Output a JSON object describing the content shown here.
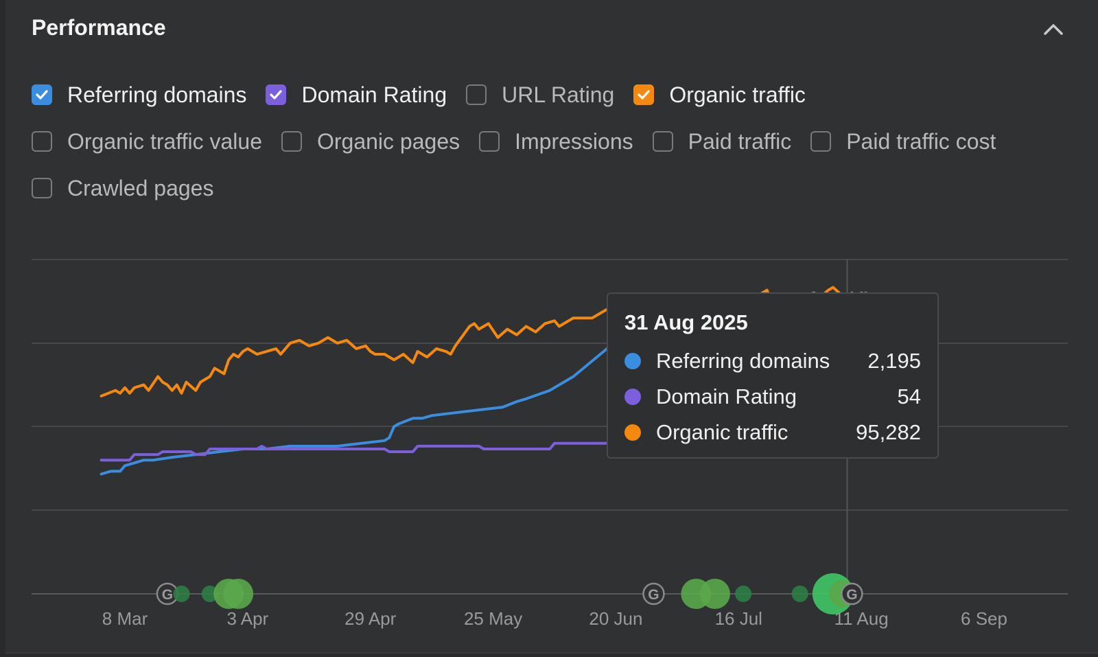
{
  "panel": {
    "title": "Performance"
  },
  "metrics": [
    [
      {
        "label": "Referring domains",
        "checked": true,
        "color": "#3b8de0"
      },
      {
        "label": "Domain Rating",
        "checked": true,
        "color": "#7b5fdc"
      },
      {
        "label": "URL Rating",
        "checked": false,
        "color": ""
      },
      {
        "label": "Organic traffic",
        "checked": true,
        "color": "#f5890f"
      }
    ],
    [
      {
        "label": "Organic traffic value",
        "checked": false,
        "color": ""
      },
      {
        "label": "Organic pages",
        "checked": false,
        "color": ""
      },
      {
        "label": "Impressions",
        "checked": false,
        "color": ""
      },
      {
        "label": "Paid traffic",
        "checked": false,
        "color": ""
      },
      {
        "label": "Paid traffic cost",
        "checked": false,
        "color": ""
      }
    ],
    [
      {
        "label": "Crawled pages",
        "checked": false,
        "color": ""
      }
    ]
  ],
  "tooltip": {
    "date": "31 Aug 2025",
    "rows": [
      {
        "name": "Referring domains",
        "value": "2,195",
        "color": "#3b8de0"
      },
      {
        "name": "Domain Rating",
        "value": "54",
        "color": "#7b5fdc"
      },
      {
        "name": "Organic traffic",
        "value": "95,282",
        "color": "#f5890f"
      }
    ]
  },
  "chart_data": {
    "type": "line",
    "x_start": "2025-03-03",
    "x_end": "2025-09-03",
    "x_ticks": [
      {
        "label": "8 Mar",
        "date": "2025-03-08"
      },
      {
        "label": "3 Apr",
        "date": "2025-04-03"
      },
      {
        "label": "29 Apr",
        "date": "2025-04-29"
      },
      {
        "label": "25 May",
        "date": "2025-05-25"
      },
      {
        "label": "20 Jun",
        "date": "2025-06-20"
      },
      {
        "label": "16 Jul",
        "date": "2025-07-16"
      },
      {
        "label": "11 Aug",
        "date": "2025-08-11"
      },
      {
        "label": "6 Sep",
        "date": "2025-09-06"
      }
    ],
    "grid": true,
    "series": [
      {
        "name": "Organic traffic",
        "color": "#f5890f",
        "y": [
          [
            0,
            0.71
          ],
          [
            3,
            0.73
          ],
          [
            4,
            0.72
          ],
          [
            5,
            0.74
          ],
          [
            6,
            0.72
          ],
          [
            7,
            0.74
          ],
          [
            9,
            0.75
          ],
          [
            10,
            0.73
          ],
          [
            12,
            0.78
          ],
          [
            13,
            0.76
          ],
          [
            14,
            0.75
          ],
          [
            15,
            0.73
          ],
          [
            16,
            0.75
          ],
          [
            17,
            0.72
          ],
          [
            18,
            0.76
          ],
          [
            20,
            0.73
          ],
          [
            21,
            0.76
          ],
          [
            23,
            0.78
          ],
          [
            24,
            0.81
          ],
          [
            26,
            0.79
          ],
          [
            27,
            0.84
          ],
          [
            28,
            0.86
          ],
          [
            29,
            0.85
          ],
          [
            30,
            0.87
          ],
          [
            31,
            0.88
          ],
          [
            33,
            0.86
          ],
          [
            35,
            0.87
          ],
          [
            37,
            0.88
          ],
          [
            38,
            0.86
          ],
          [
            40,
            0.9
          ],
          [
            42,
            0.91
          ],
          [
            44,
            0.89
          ],
          [
            46,
            0.9
          ],
          [
            48,
            0.92
          ],
          [
            50,
            0.9
          ],
          [
            52,
            0.91
          ],
          [
            54,
            0.88
          ],
          [
            56,
            0.89
          ],
          [
            57,
            0.87
          ],
          [
            58,
            0.86
          ],
          [
            60,
            0.86
          ],
          [
            62,
            0.84
          ],
          [
            64,
            0.86
          ],
          [
            66,
            0.83
          ],
          [
            67,
            0.87
          ],
          [
            69,
            0.85
          ],
          [
            71,
            0.88
          ],
          [
            73,
            0.87
          ],
          [
            74,
            0.86
          ],
          [
            75,
            0.89
          ],
          [
            78,
            0.96
          ],
          [
            79,
            0.97
          ],
          [
            80,
            0.95
          ],
          [
            82,
            0.97
          ],
          [
            84,
            0.92
          ],
          [
            86,
            0.95
          ],
          [
            88,
            0.93
          ],
          [
            90,
            0.96
          ],
          [
            92,
            0.94
          ],
          [
            94,
            0.97
          ],
          [
            96,
            0.98
          ],
          [
            97,
            0.96
          ],
          [
            100,
            0.99
          ],
          [
            104,
            0.99
          ],
          [
            107,
            1.02
          ],
          [
            110,
            1.0
          ],
          [
            113,
            1.04
          ],
          [
            115,
            1.03
          ],
          [
            117,
            1.01
          ],
          [
            119,
            1.02
          ],
          [
            121,
            1.05
          ],
          [
            124,
            1.06
          ],
          [
            126,
            1.03
          ],
          [
            128,
            1.05
          ],
          [
            130,
            1.06
          ],
          [
            132,
            1.05
          ],
          [
            134,
            1.07
          ],
          [
            136,
            1.05
          ],
          [
            138,
            1.06
          ],
          [
            140,
            1.08
          ],
          [
            141,
            1.09
          ],
          [
            142,
            1.05
          ],
          [
            143,
            1.07
          ],
          [
            144,
            1.06
          ],
          [
            145,
            1.07
          ],
          [
            147,
            1.05
          ],
          [
            149,
            1.07
          ],
          [
            151,
            1.08
          ],
          [
            152,
            1.06
          ],
          [
            154,
            1.09
          ],
          [
            155,
            1.1
          ],
          [
            157,
            1.07
          ],
          [
            158,
            1.04
          ],
          [
            159,
            1.08
          ],
          [
            160,
            1.06
          ],
          [
            161,
            1.08
          ],
          [
            162,
            1.07
          ]
        ]
      },
      {
        "name": "Referring domains",
        "color": "#3b8de0",
        "y": [
          [
            0,
            0.43
          ],
          [
            2,
            0.44
          ],
          [
            4,
            0.44
          ],
          [
            5,
            0.46
          ],
          [
            7,
            0.47
          ],
          [
            9,
            0.48
          ],
          [
            11,
            0.48
          ],
          [
            15,
            0.49
          ],
          [
            20,
            0.5
          ],
          [
            25,
            0.51
          ],
          [
            30,
            0.52
          ],
          [
            35,
            0.52
          ],
          [
            40,
            0.53
          ],
          [
            45,
            0.53
          ],
          [
            50,
            0.53
          ],
          [
            55,
            0.54
          ],
          [
            60,
            0.55
          ],
          [
            61,
            0.56
          ],
          [
            62,
            0.6
          ],
          [
            63,
            0.61
          ],
          [
            66,
            0.63
          ],
          [
            68,
            0.63
          ],
          [
            70,
            0.64
          ],
          [
            75,
            0.65
          ],
          [
            80,
            0.66
          ],
          [
            85,
            0.67
          ],
          [
            88,
            0.69
          ],
          [
            90,
            0.7
          ],
          [
            95,
            0.73
          ],
          [
            100,
            0.78
          ],
          [
            105,
            0.85
          ],
          [
            110,
            0.92
          ],
          [
            115,
            1.0
          ],
          [
            120,
            1.02
          ],
          [
            125,
            1.03
          ],
          [
            130,
            1.03
          ],
          [
            135,
            1.03
          ],
          [
            140,
            1.04
          ],
          [
            143,
            1.04
          ],
          [
            146,
            1.05
          ],
          [
            148,
            1.05
          ],
          [
            150,
            1.05
          ],
          [
            152,
            1.05
          ],
          [
            155,
            1.06
          ],
          [
            157,
            1.06
          ],
          [
            160,
            1.07
          ],
          [
            162,
            1.08
          ]
        ]
      },
      {
        "name": "Domain Rating",
        "color": "#7b5fdc",
        "y": [
          [
            0,
            0.48
          ],
          [
            6,
            0.48
          ],
          [
            7,
            0.5
          ],
          [
            12,
            0.5
          ],
          [
            13,
            0.51
          ],
          [
            19,
            0.51
          ],
          [
            20,
            0.5
          ],
          [
            22,
            0.5
          ],
          [
            23,
            0.52
          ],
          [
            33,
            0.52
          ],
          [
            34,
            0.53
          ],
          [
            35,
            0.52
          ],
          [
            60,
            0.52
          ],
          [
            61,
            0.51
          ],
          [
            66,
            0.51
          ],
          [
            67,
            0.53
          ],
          [
            80,
            0.53
          ],
          [
            81,
            0.52
          ],
          [
            95,
            0.52
          ],
          [
            96,
            0.54
          ],
          [
            110,
            0.54
          ],
          [
            111,
            0.56
          ],
          [
            140,
            0.56
          ],
          [
            141,
            0.57
          ],
          [
            145,
            0.57
          ],
          [
            147,
            0.58
          ],
          [
            150,
            0.58
          ],
          [
            152,
            0.59
          ],
          [
            155,
            0.59
          ],
          [
            156,
            0.6
          ],
          [
            157,
            0.59
          ],
          [
            159,
            0.58
          ],
          [
            162,
            0.58
          ]
        ]
      }
    ],
    "y_note": "values relative to panel scale, no axis labels shown",
    "ylim": [
      0,
      1.2
    ],
    "markers_day": 158,
    "annotations": [
      {
        "day": 14,
        "kind": "google"
      },
      {
        "day": 17,
        "kind": "dot",
        "size": "s"
      },
      {
        "day": 23,
        "kind": "dot",
        "size": "s"
      },
      {
        "day": 27,
        "kind": "dot",
        "size": "l"
      },
      {
        "day": 29,
        "kind": "dot",
        "size": "l"
      },
      {
        "day": 117,
        "kind": "google"
      },
      {
        "day": 126,
        "kind": "dot",
        "size": "l"
      },
      {
        "day": 130,
        "kind": "dot",
        "size": "l"
      },
      {
        "day": 136,
        "kind": "dot",
        "size": "s"
      },
      {
        "day": 148,
        "kind": "dot",
        "size": "s"
      },
      {
        "day": 155,
        "kind": "dot",
        "size": "xl"
      },
      {
        "day": 157,
        "kind": "dot",
        "size": "m"
      },
      {
        "day": 159,
        "kind": "google"
      }
    ]
  }
}
